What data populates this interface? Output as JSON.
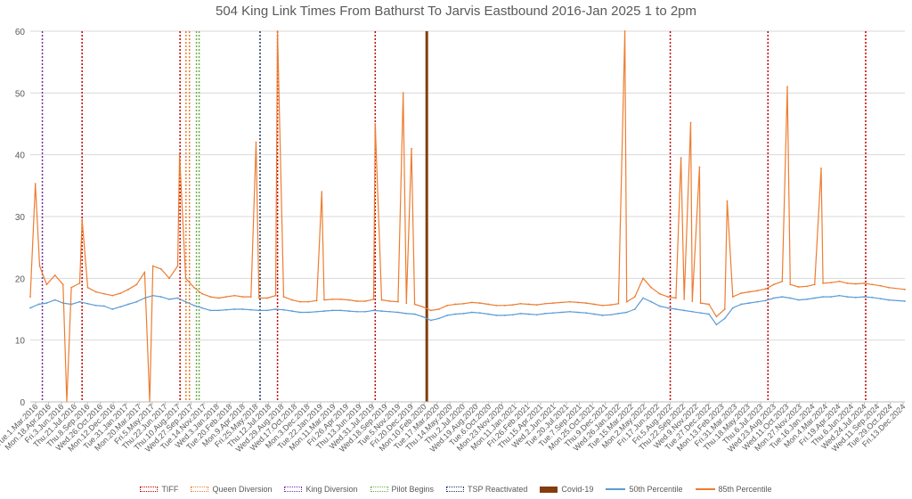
{
  "chart_data": {
    "type": "line",
    "title": "504 King Link Times From Bathurst To Jarvis Eastbound 2016-Jan 2025 1 to 2pm",
    "xlabel": "",
    "ylabel": "",
    "ylim": [
      0,
      60
    ],
    "yticks": [
      0,
      10,
      20,
      30,
      40,
      50,
      60
    ],
    "grid": true,
    "legend_position": "bottom",
    "x_range": [
      "2016-03-01",
      "2025-01-31"
    ],
    "x_tick_labels": [
      "Tue.1.Mar.2016",
      "Mon.18.Apr.2016",
      "Fri.3.Jun.2016",
      "Thu.21.Jul.2016",
      "Thu.8.Sep.2016",
      "Wed.26.Oct.2016",
      "Mon.12.Dec.2016",
      "Tue.31.Jan.2017",
      "Mon.20.Mar.2017",
      "Fri.5.May.2017",
      "Thu.22.Jun.2017",
      "Thu.10.Aug.2017",
      "Wed.27.Sep.2017",
      "Tue.14.Nov.2017",
      "Wed.3.Jan.2018",
      "Tue.20.Feb.2018",
      "Mon.9.Apr.2018",
      "Fri.25.May.2018",
      "Thu.12.Jul.2018",
      "Wed.29.Aug.2018",
      "Wed.17.Oct.2018",
      "Mon.3.Dec.2018",
      "Tue.22.Jan.2019",
      "Mon.11.Mar.2019",
      "Fri.26.Apr.2019",
      "Thu.13.Jun.2019",
      "Wed.31.Jul.2019",
      "Wed.18.Sep.2019",
      "Tue.5.Nov.2019",
      "Fri.20.Dec.2019",
      "Mon.10.Feb.2020",
      "Tue.17.Mar.2020",
      "Thu.14.May.2020",
      "Thu.2.Jul.2020",
      "Wed.19.Aug.2020",
      "Tue.6.Oct.2020",
      "Mon.23.Nov.2020",
      "Mon.11.Jan.2021",
      "Fri.26.Feb.2021",
      "Thu.15.Apr.2021",
      "Wed.2.Jun.2021",
      "Tue.20.Jul.2021",
      "Tue.7.Sep.2021",
      "Mon.25.Oct.2021",
      "Thu.9.Dec.2021",
      "Wed.26.Jan.2022",
      "Tue.15.Mar.2022",
      "Mon.2.May.2022",
      "Fri.17.Jun.2022",
      "Fri.5.Aug.2022",
      "Thu.22.Sep.2022",
      "Wed.9.Nov.2022",
      "Tue.27.Dec.2022",
      "Mon.13.Feb.2023",
      "Fri.31.Mar.2023",
      "Thu.18.May.2023",
      "Thu.6.Jul.2023",
      "Wed.23.Aug.2023",
      "Wed.11.Oct.2023",
      "Mon.27.Nov.2023",
      "Tue.16.Jan.2024",
      "Mon.4.Mar.2024",
      "Fri.19.Apr.2024",
      "Thu.6.Jun.2024",
      "Wed.24.Jul.2024",
      "Wed.11.Sep.2024",
      "Tue.29.Oct.2024",
      "Fri.13.Dec.2024"
    ],
    "events": [
      {
        "name": "TIFF",
        "color": "#C00000",
        "dates": [
          "2016-09-10",
          "2017-09-10",
          "2018-09-08",
          "2019-09-07",
          "2022-09-10",
          "2023-09-09",
          "2024-09-07"
        ]
      },
      {
        "name": "Queen Diversion",
        "color": "#ED7D31",
        "dates": [
          "2017-10-02",
          "2017-10-15"
        ]
      },
      {
        "name": "King Diversion",
        "color": "#7030A0",
        "dates": [
          "2016-04-15"
        ]
      },
      {
        "name": "Pilot Begins",
        "color": "#70AD47",
        "dates": [
          "2017-11-10",
          "2017-11-20"
        ]
      },
      {
        "name": "TSP Reactivated",
        "color": "#203864",
        "dates": [
          "2018-07-05"
        ]
      },
      {
        "name": "Covid-19",
        "color": "#843C0C",
        "dates": [
          "2020-03-17"
        ]
      }
    ],
    "series": [
      {
        "name": "50th Percentile",
        "color": "#5B9BD5",
        "points": [
          [
            "2016-03-01",
            15.2
          ],
          [
            "2016-04-01",
            15.8
          ],
          [
            "2016-05-01",
            16.0
          ],
          [
            "2016-06-01",
            16.5
          ],
          [
            "2016-07-01",
            16.0
          ],
          [
            "2016-08-01",
            15.8
          ],
          [
            "2016-09-01",
            16.2
          ],
          [
            "2016-10-01",
            15.9
          ],
          [
            "2016-11-01",
            15.6
          ],
          [
            "2016-12-01",
            15.5
          ],
          [
            "2017-01-01",
            15.0
          ],
          [
            "2017-02-01",
            15.4
          ],
          [
            "2017-03-01",
            15.8
          ],
          [
            "2017-04-01",
            16.2
          ],
          [
            "2017-05-01",
            16.8
          ],
          [
            "2017-06-01",
            17.2
          ],
          [
            "2017-07-01",
            17.0
          ],
          [
            "2017-08-01",
            16.6
          ],
          [
            "2017-09-01",
            16.8
          ],
          [
            "2017-10-01",
            16.2
          ],
          [
            "2017-11-01",
            15.6
          ],
          [
            "2017-12-01",
            15.2
          ],
          [
            "2018-01-01",
            14.8
          ],
          [
            "2018-02-01",
            14.8
          ],
          [
            "2018-03-01",
            14.9
          ],
          [
            "2018-04-01",
            15.0
          ],
          [
            "2018-05-01",
            15.0
          ],
          [
            "2018-06-01",
            14.9
          ],
          [
            "2018-07-01",
            14.8
          ],
          [
            "2018-08-01",
            14.8
          ],
          [
            "2018-09-01",
            15.0
          ],
          [
            "2018-10-01",
            14.9
          ],
          [
            "2018-11-01",
            14.7
          ],
          [
            "2018-12-01",
            14.5
          ],
          [
            "2019-01-01",
            14.5
          ],
          [
            "2019-02-01",
            14.6
          ],
          [
            "2019-03-01",
            14.7
          ],
          [
            "2019-04-01",
            14.8
          ],
          [
            "2019-05-01",
            14.8
          ],
          [
            "2019-06-01",
            14.7
          ],
          [
            "2019-07-01",
            14.6
          ],
          [
            "2019-08-01",
            14.6
          ],
          [
            "2019-09-01",
            14.8
          ],
          [
            "2019-10-01",
            14.7
          ],
          [
            "2019-11-01",
            14.6
          ],
          [
            "2019-12-01",
            14.5
          ],
          [
            "2020-01-01",
            14.3
          ],
          [
            "2020-02-01",
            14.2
          ],
          [
            "2020-03-01",
            13.8
          ],
          [
            "2020-04-01",
            13.2
          ],
          [
            "2020-05-01",
            13.5
          ],
          [
            "2020-06-01",
            14.0
          ],
          [
            "2020-07-01",
            14.2
          ],
          [
            "2020-08-01",
            14.3
          ],
          [
            "2020-09-01",
            14.5
          ],
          [
            "2020-10-01",
            14.4
          ],
          [
            "2020-11-01",
            14.2
          ],
          [
            "2020-12-01",
            14.0
          ],
          [
            "2021-01-01",
            14.0
          ],
          [
            "2021-02-01",
            14.1
          ],
          [
            "2021-03-01",
            14.3
          ],
          [
            "2021-04-01",
            14.2
          ],
          [
            "2021-05-01",
            14.1
          ],
          [
            "2021-06-01",
            14.3
          ],
          [
            "2021-07-01",
            14.4
          ],
          [
            "2021-08-01",
            14.5
          ],
          [
            "2021-09-01",
            14.6
          ],
          [
            "2021-10-01",
            14.5
          ],
          [
            "2021-11-01",
            14.4
          ],
          [
            "2021-12-01",
            14.2
          ],
          [
            "2022-01-01",
            14.0
          ],
          [
            "2022-02-01",
            14.1
          ],
          [
            "2022-03-01",
            14.3
          ],
          [
            "2022-04-01",
            14.5
          ],
          [
            "2022-05-01",
            15.0
          ],
          [
            "2022-06-01",
            16.8
          ],
          [
            "2022-07-01",
            16.2
          ],
          [
            "2022-08-01",
            15.5
          ],
          [
            "2022-09-01",
            15.2
          ],
          [
            "2022-10-01",
            15.0
          ],
          [
            "2022-11-01",
            14.8
          ],
          [
            "2022-12-01",
            14.6
          ],
          [
            "2023-01-01",
            14.4
          ],
          [
            "2023-02-01",
            14.2
          ],
          [
            "2023-03-01",
            12.5
          ],
          [
            "2023-04-01",
            13.5
          ],
          [
            "2023-05-01",
            15.2
          ],
          [
            "2023-06-01",
            15.8
          ],
          [
            "2023-07-01",
            16.0
          ],
          [
            "2023-08-01",
            16.2
          ],
          [
            "2023-09-01",
            16.4
          ],
          [
            "2023-10-01",
            16.8
          ],
          [
            "2023-11-01",
            17.0
          ],
          [
            "2023-12-01",
            16.8
          ],
          [
            "2024-01-01",
            16.5
          ],
          [
            "2024-02-01",
            16.6
          ],
          [
            "2024-03-01",
            16.8
          ],
          [
            "2024-04-01",
            17.0
          ],
          [
            "2024-05-01",
            17.0
          ],
          [
            "2024-06-01",
            17.2
          ],
          [
            "2024-07-01",
            17.0
          ],
          [
            "2024-08-01",
            16.9
          ],
          [
            "2024-09-01",
            17.0
          ],
          [
            "2024-10-01",
            16.9
          ],
          [
            "2024-11-01",
            16.7
          ],
          [
            "2024-12-01",
            16.5
          ],
          [
            "2025-01-31",
            16.3
          ]
        ]
      },
      {
        "name": "85th Percentile",
        "color": "#ED7D31",
        "points": [
          [
            "2016-03-01",
            17.0
          ],
          [
            "2016-03-20",
            35.3
          ],
          [
            "2016-04-05",
            22.0
          ],
          [
            "2016-05-01",
            19.0
          ],
          [
            "2016-06-01",
            20.5
          ],
          [
            "2016-07-01",
            19.0
          ],
          [
            "2016-07-15",
            0
          ],
          [
            "2016-08-01",
            18.5
          ],
          [
            "2016-09-01",
            19.2
          ],
          [
            "2016-09-10",
            29.5
          ],
          [
            "2016-10-01",
            18.5
          ],
          [
            "2016-11-01",
            17.8
          ],
          [
            "2016-12-01",
            17.5
          ],
          [
            "2017-01-01",
            17.2
          ],
          [
            "2017-02-01",
            17.6
          ],
          [
            "2017-03-01",
            18.2
          ],
          [
            "2017-04-01",
            19.0
          ],
          [
            "2017-05-01",
            21.0
          ],
          [
            "2017-05-20",
            0
          ],
          [
            "2017-06-01",
            22.0
          ],
          [
            "2017-07-01",
            21.5
          ],
          [
            "2017-08-01",
            20.0
          ],
          [
            "2017-09-01",
            22.0
          ],
          [
            "2017-09-08",
            40.0
          ],
          [
            "2017-10-01",
            20.0
          ],
          [
            "2017-11-01",
            18.5
          ],
          [
            "2017-12-01",
            17.5
          ],
          [
            "2018-01-01",
            17.0
          ],
          [
            "2018-02-01",
            16.8
          ],
          [
            "2018-03-01",
            17.0
          ],
          [
            "2018-04-01",
            17.2
          ],
          [
            "2018-05-01",
            17.0
          ],
          [
            "2018-06-01",
            17.0
          ],
          [
            "2018-06-20",
            42.0
          ],
          [
            "2018-07-01",
            16.8
          ],
          [
            "2018-08-01",
            16.8
          ],
          [
            "2018-09-01",
            17.2
          ],
          [
            "2018-09-08",
            60.0
          ],
          [
            "2018-10-01",
            17.0
          ],
          [
            "2018-11-01",
            16.5
          ],
          [
            "2018-12-01",
            16.2
          ],
          [
            "2019-01-01",
            16.2
          ],
          [
            "2019-02-01",
            16.4
          ],
          [
            "2019-02-20",
            34.0
          ],
          [
            "2019-03-01",
            16.5
          ],
          [
            "2019-04-01",
            16.6
          ],
          [
            "2019-05-01",
            16.6
          ],
          [
            "2019-06-01",
            16.5
          ],
          [
            "2019-07-01",
            16.3
          ],
          [
            "2019-08-01",
            16.3
          ],
          [
            "2019-09-01",
            16.6
          ],
          [
            "2019-09-07",
            45.0
          ],
          [
            "2019-10-01",
            16.5
          ],
          [
            "2019-11-01",
            16.3
          ],
          [
            "2019-12-01",
            16.2
          ],
          [
            "2019-12-20",
            50.0
          ],
          [
            "2020-01-01",
            16.0
          ],
          [
            "2020-01-20",
            41.0
          ],
          [
            "2020-02-01",
            15.8
          ],
          [
            "2020-03-01",
            15.4
          ],
          [
            "2020-04-01",
            14.8
          ],
          [
            "2020-05-01",
            15.0
          ],
          [
            "2020-06-01",
            15.6
          ],
          [
            "2020-07-01",
            15.8
          ],
          [
            "2020-08-01",
            15.9
          ],
          [
            "2020-09-01",
            16.1
          ],
          [
            "2020-10-01",
            16.0
          ],
          [
            "2020-11-01",
            15.8
          ],
          [
            "2020-12-01",
            15.6
          ],
          [
            "2021-01-01",
            15.6
          ],
          [
            "2021-02-01",
            15.7
          ],
          [
            "2021-03-01",
            15.9
          ],
          [
            "2021-04-01",
            15.8
          ],
          [
            "2021-05-01",
            15.7
          ],
          [
            "2021-06-01",
            15.9
          ],
          [
            "2021-07-01",
            16.0
          ],
          [
            "2021-08-01",
            16.1
          ],
          [
            "2021-09-01",
            16.2
          ],
          [
            "2021-10-01",
            16.1
          ],
          [
            "2021-11-01",
            16.0
          ],
          [
            "2021-12-01",
            15.8
          ],
          [
            "2022-01-01",
            15.6
          ],
          [
            "2022-02-01",
            15.7
          ],
          [
            "2022-03-01",
            15.9
          ],
          [
            "2022-03-25",
            60.0
          ],
          [
            "2022-04-01",
            16.2
          ],
          [
            "2022-05-01",
            17.0
          ],
          [
            "2022-06-01",
            20.0
          ],
          [
            "2022-07-01",
            18.5
          ],
          [
            "2022-08-01",
            17.5
          ],
          [
            "2022-09-01",
            17.0
          ],
          [
            "2022-10-01",
            16.8
          ],
          [
            "2022-10-20",
            39.5
          ],
          [
            "2022-11-01",
            16.6
          ],
          [
            "2022-11-25",
            45.2
          ],
          [
            "2022-12-01",
            16.3
          ],
          [
            "2022-12-28",
            38.0
          ],
          [
            "2023-01-01",
            16.0
          ],
          [
            "2023-02-01",
            15.8
          ],
          [
            "2023-03-01",
            13.8
          ],
          [
            "2023-04-01",
            15.0
          ],
          [
            "2023-04-10",
            32.5
          ],
          [
            "2023-05-01",
            17.0
          ],
          [
            "2023-06-01",
            17.6
          ],
          [
            "2023-07-01",
            17.8
          ],
          [
            "2023-08-01",
            18.0
          ],
          [
            "2023-09-01",
            18.3
          ],
          [
            "2023-10-01",
            19.0
          ],
          [
            "2023-11-01",
            19.5
          ],
          [
            "2023-11-20",
            51.0
          ],
          [
            "2023-12-01",
            19.0
          ],
          [
            "2024-01-01",
            18.6
          ],
          [
            "2024-02-01",
            18.7
          ],
          [
            "2024-03-01",
            19.0
          ],
          [
            "2024-03-25",
            37.8
          ],
          [
            "2024-04-01",
            19.2
          ],
          [
            "2024-05-01",
            19.3
          ],
          [
            "2024-06-01",
            19.5
          ],
          [
            "2024-07-01",
            19.2
          ],
          [
            "2024-08-01",
            19.1
          ],
          [
            "2024-09-01",
            19.2
          ],
          [
            "2024-10-01",
            19.0
          ],
          [
            "2024-11-01",
            18.8
          ],
          [
            "2024-12-01",
            18.5
          ],
          [
            "2025-01-31",
            18.2
          ]
        ]
      }
    ]
  }
}
